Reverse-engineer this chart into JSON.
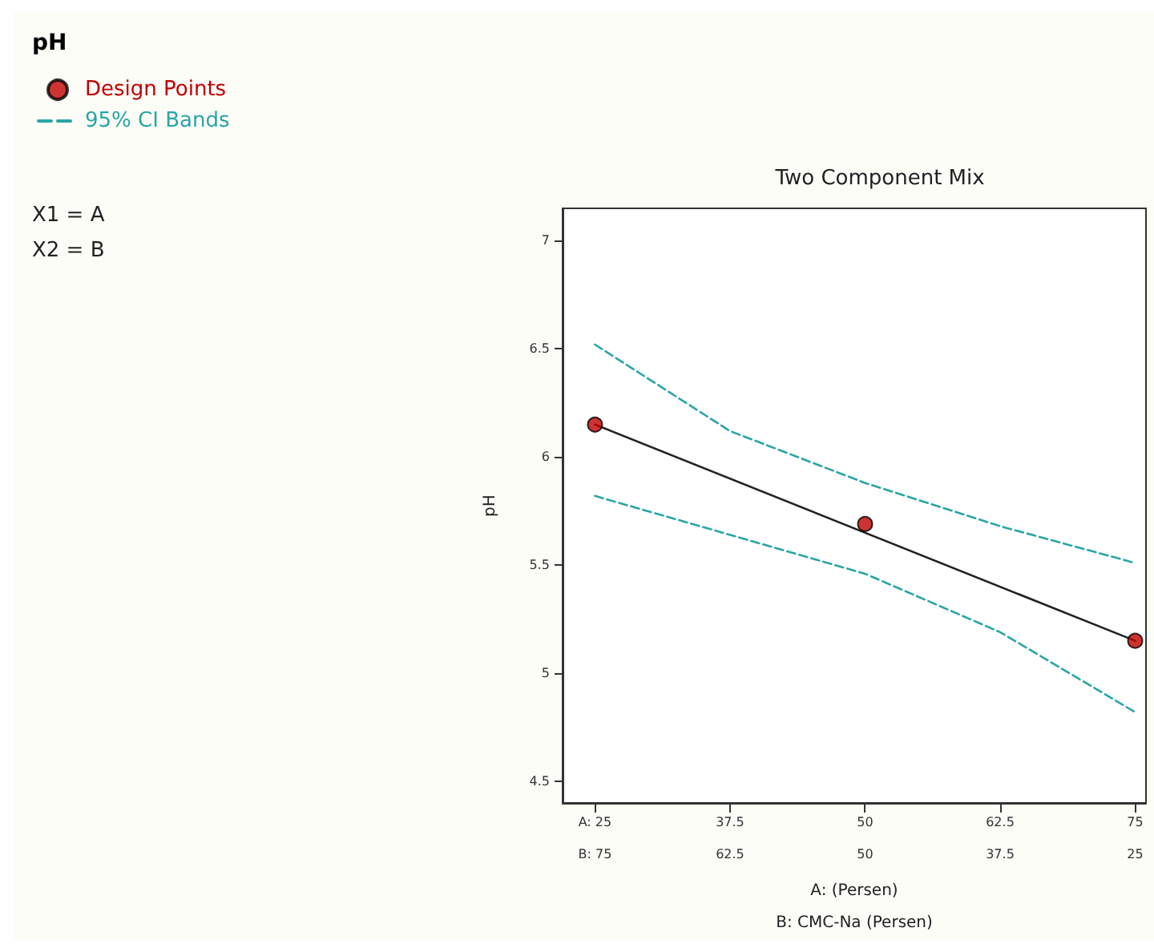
{
  "chart_data": {
    "type": "line",
    "title": "Two Component Mix",
    "xlabel": "A: (Persen)",
    "x2label": "B: CMC-Na (Persen)",
    "ylabel": "pH",
    "legend_title": "pH",
    "legend": "top left",
    "annotations": [
      "X1 = A",
      "X2 = B"
    ],
    "xlim": [
      22,
      76
    ],
    "xticks": [
      {
        "value": 25,
        "label": "A: 25"
      },
      37.5,
      50,
      62.5,
      75
    ],
    "x2lim": [
      78,
      24
    ],
    "x2ticks": [
      {
        "value": 75,
        "label": "B: 75"
      },
      62.5,
      50,
      37.5,
      25
    ],
    "ylim": [
      4.4,
      7.15
    ],
    "yticks": [
      4.5,
      5,
      5.5,
      6,
      6.5,
      7
    ],
    "grid": false,
    "series": [
      {
        "name": "Design Points",
        "type": "scatter",
        "marker": "circle",
        "color": "#c00000",
        "x": [
          25,
          50,
          75
        ],
        "values": [
          6.15,
          5.69,
          5.15
        ]
      },
      {
        "marker": "none",
        "color": "#222222",
        "x": [
          25,
          75
        ],
        "values": [
          6.15,
          5.15
        ]
      },
      {
        "name": "95% CI Bands",
        "marker": "none",
        "line_style": "dashed",
        "color": "#2aa5a5",
        "x": [
          25,
          37.5,
          50,
          62.5,
          75
        ],
        "values": [
          6.52,
          6.12,
          5.88,
          5.68,
          5.51
        ]
      },
      {
        "marker": "none",
        "line_style": "dashed",
        "color": "#2aa5a5",
        "x": [
          25,
          37.5,
          50,
          62.5,
          75
        ],
        "values": [
          5.82,
          5.64,
          5.46,
          5.19,
          4.82
        ]
      }
    ]
  }
}
